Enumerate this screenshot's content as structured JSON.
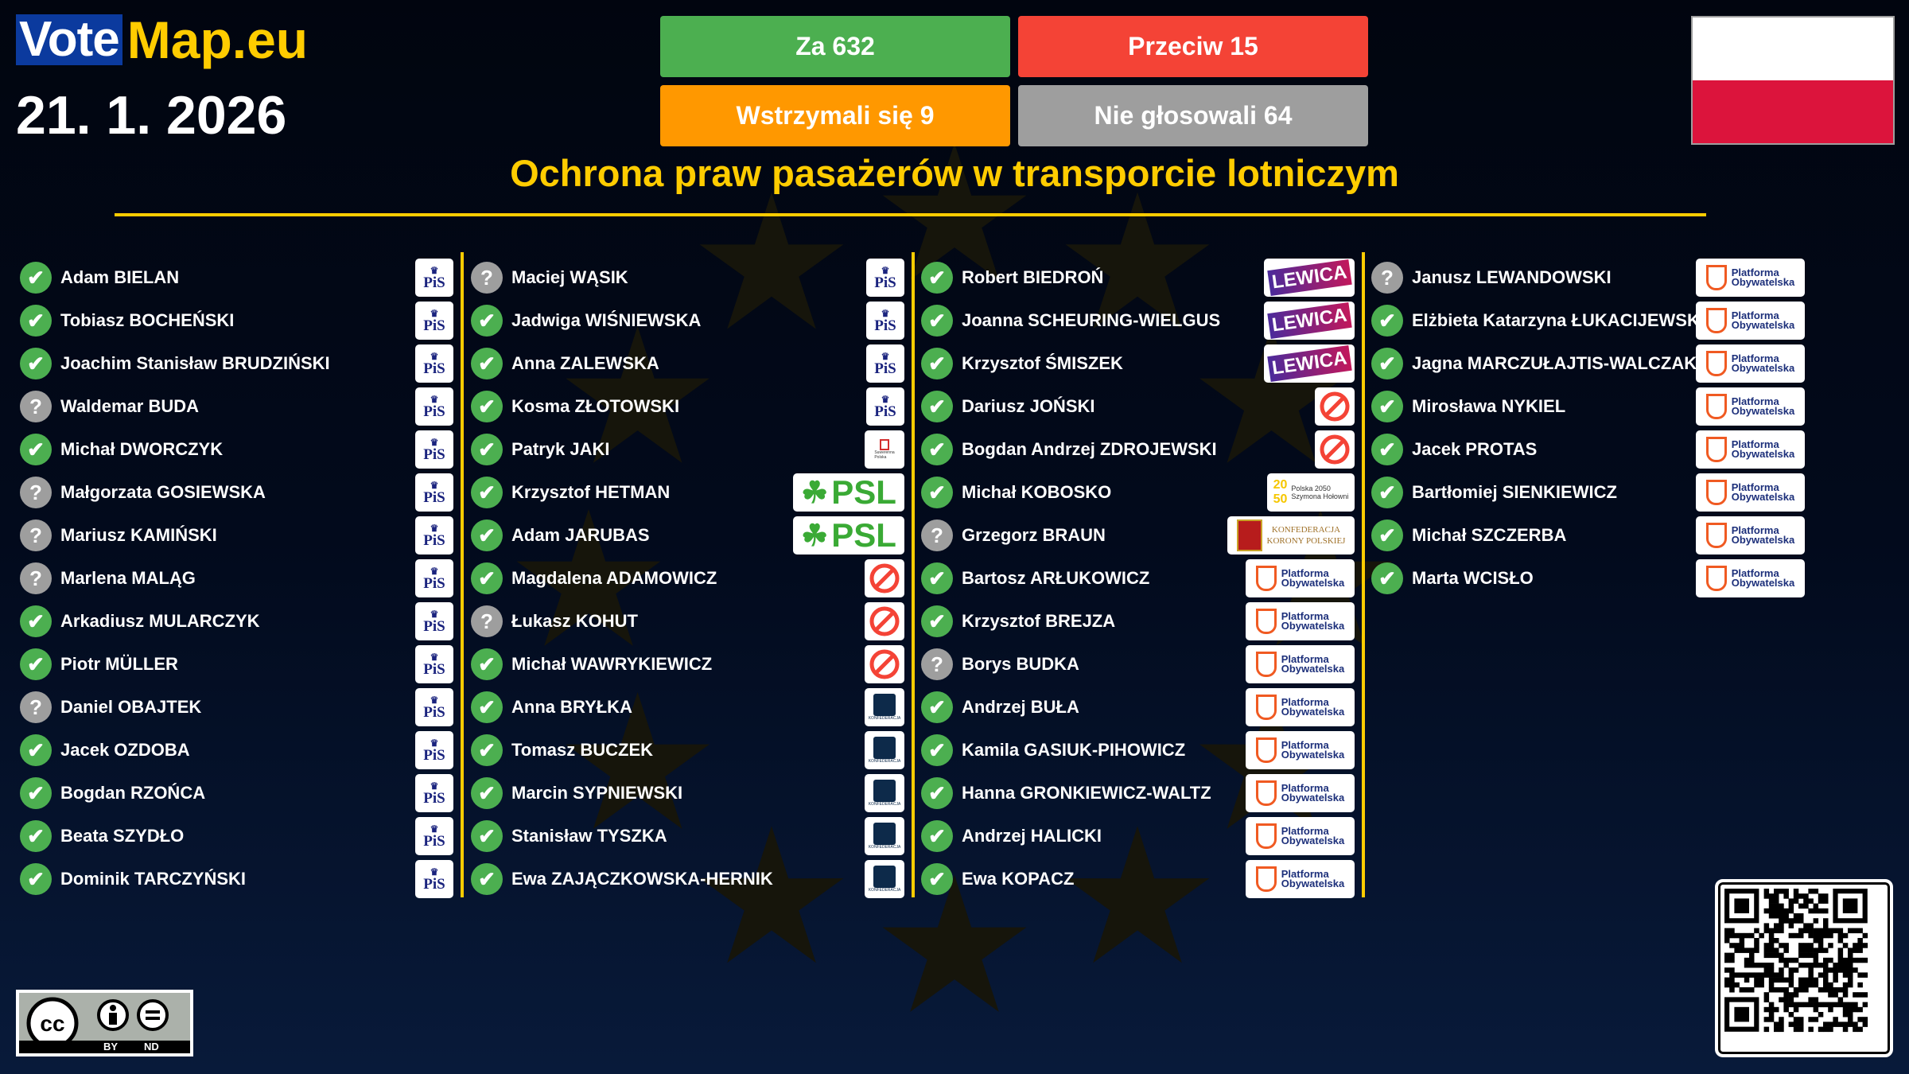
{
  "brand": {
    "vote": "Vote",
    "map": "Map.eu"
  },
  "date": "21. 1. 2026",
  "tally": {
    "for": {
      "label": "Za 632",
      "color": "#4caf50"
    },
    "against": {
      "label": "Przeciw 15",
      "color": "#f44336"
    },
    "abstain": {
      "label": "Wstrzymali się 9",
      "color": "#ff9800"
    },
    "absent": {
      "label": "Nie głosowali 64",
      "color": "#9e9e9e"
    }
  },
  "country_flag": "poland-flag",
  "title": "Ochrona praw pasażerów w transporcie lotniczym",
  "columns": [
    [
      {
        "name": "Adam BIELAN",
        "vote": "for",
        "party": "PiS"
      },
      {
        "name": "Tobiasz BOCHEŃSKI",
        "vote": "for",
        "party": "PiS"
      },
      {
        "name": "Joachim Stanisław BRUDZIŃSKI",
        "vote": "for",
        "party": "PiS"
      },
      {
        "name": "Waldemar BUDA",
        "vote": "unknown",
        "party": "PiS"
      },
      {
        "name": "Michał DWORCZYK",
        "vote": "for",
        "party": "PiS"
      },
      {
        "name": "Małgorzata GOSIEWSKA",
        "vote": "unknown",
        "party": "PiS"
      },
      {
        "name": "Mariusz KAMIŃSKI",
        "vote": "unknown",
        "party": "PiS"
      },
      {
        "name": "Marlena MALĄG",
        "vote": "unknown",
        "party": "PiS"
      },
      {
        "name": "Arkadiusz MULARCZYK",
        "vote": "for",
        "party": "PiS"
      },
      {
        "name": "Piotr MÜLLER",
        "vote": "for",
        "party": "PiS"
      },
      {
        "name": "Daniel OBAJTEK",
        "vote": "unknown",
        "party": "PiS"
      },
      {
        "name": "Jacek OZDOBA",
        "vote": "for",
        "party": "PiS"
      },
      {
        "name": "Bogdan RZOŃCA",
        "vote": "for",
        "party": "PiS"
      },
      {
        "name": "Beata SZYDŁO",
        "vote": "for",
        "party": "PiS"
      },
      {
        "name": "Dominik TARCZYŃSKI",
        "vote": "for",
        "party": "PiS"
      }
    ],
    [
      {
        "name": "Maciej WĄSIK",
        "vote": "unknown",
        "party": "PiS"
      },
      {
        "name": "Jadwiga WIŚNIEWSKA",
        "vote": "for",
        "party": "PiS"
      },
      {
        "name": "Anna ZALEWSKA",
        "vote": "for",
        "party": "PiS"
      },
      {
        "name": "Kosma ZŁOTOWSKI",
        "vote": "for",
        "party": "PiS"
      },
      {
        "name": "Patryk JAKI",
        "vote": "for",
        "party": "Suwerenna Polska"
      },
      {
        "name": "Krzysztof HETMAN",
        "vote": "for",
        "party": "PSL"
      },
      {
        "name": "Adam JARUBAS",
        "vote": "for",
        "party": "PSL"
      },
      {
        "name": "Magdalena ADAMOWICZ",
        "vote": "for",
        "party": "none"
      },
      {
        "name": "Łukasz KOHUT",
        "vote": "unknown",
        "party": "none"
      },
      {
        "name": "Michał WAWRYKIEWICZ",
        "vote": "for",
        "party": "none"
      },
      {
        "name": "Anna BRYŁKA",
        "vote": "for",
        "party": "Konfederacja"
      },
      {
        "name": "Tomasz BUCZEK",
        "vote": "for",
        "party": "Konfederacja"
      },
      {
        "name": "Marcin SYPNIEWSKI",
        "vote": "for",
        "party": "Konfederacja"
      },
      {
        "name": "Stanisław TYSZKA",
        "vote": "for",
        "party": "Konfederacja"
      },
      {
        "name": "Ewa ZAJĄCZKOWSKA-HERNIK",
        "vote": "for",
        "party": "Konfederacja"
      }
    ],
    [
      {
        "name": "Robert BIEDROŃ",
        "vote": "for",
        "party": "Lewica"
      },
      {
        "name": "Joanna SCHEURING-WIELGUS",
        "vote": "for",
        "party": "Lewica"
      },
      {
        "name": "Krzysztof ŚMISZEK",
        "vote": "for",
        "party": "Lewica"
      },
      {
        "name": "Dariusz JOŃSKI",
        "vote": "for",
        "party": "none"
      },
      {
        "name": "Bogdan Andrzej ZDROJEWSKI",
        "vote": "for",
        "party": "none"
      },
      {
        "name": "Michał KOBOSKO",
        "vote": "for",
        "party": "Polska 2050"
      },
      {
        "name": "Grzegorz BRAUN",
        "vote": "unknown",
        "party": "Konfederacja Korony Polskiej"
      },
      {
        "name": "Bartosz ARŁUKOWICZ",
        "vote": "for",
        "party": "Platforma Obywatelska"
      },
      {
        "name": "Krzysztof BREJZA",
        "vote": "for",
        "party": "Platforma Obywatelska"
      },
      {
        "name": "Borys BUDKA",
        "vote": "unknown",
        "party": "Platforma Obywatelska"
      },
      {
        "name": "Andrzej BUŁA",
        "vote": "for",
        "party": "Platforma Obywatelska"
      },
      {
        "name": "Kamila GASIUK-PIHOWICZ",
        "vote": "for",
        "party": "Platforma Obywatelska"
      },
      {
        "name": "Hanna GRONKIEWICZ-WALTZ",
        "vote": "for",
        "party": "Platforma Obywatelska"
      },
      {
        "name": "Andrzej HALICKI",
        "vote": "for",
        "party": "Platforma Obywatelska"
      },
      {
        "name": "Ewa KOPACZ",
        "vote": "for",
        "party": "Platforma Obywatelska"
      }
    ],
    [
      {
        "name": "Janusz LEWANDOWSKI",
        "vote": "unknown",
        "party": "Platforma Obywatelska"
      },
      {
        "name": "Elżbieta Katarzyna ŁUKACIJEWSKA",
        "vote": "for",
        "party": "Platforma Obywatelska"
      },
      {
        "name": "Jagna MARCZUŁAJTIS-WALCZAK",
        "vote": "for",
        "party": "Platforma Obywatelska"
      },
      {
        "name": "Mirosława NYKIEL",
        "vote": "for",
        "party": "Platforma Obywatelska"
      },
      {
        "name": "Jacek PROTAS",
        "vote": "for",
        "party": "Platforma Obywatelska"
      },
      {
        "name": "Bartłomiej SIENKIEWICZ",
        "vote": "for",
        "party": "Platforma Obywatelska"
      },
      {
        "name": "Michał SZCZERBA",
        "vote": "for",
        "party": "Platforma Obywatelska"
      },
      {
        "name": "Marta WCISŁO",
        "vote": "for",
        "party": "Platforma Obywatelska"
      }
    ]
  ],
  "vote_icons": {
    "for": "check-icon",
    "unknown": "question-icon"
  },
  "license": {
    "labels": [
      "BY",
      "ND"
    ],
    "icon": "cc-by-nd-badge"
  },
  "qr": "qr-code",
  "colors": {
    "accent": "#ffcc00",
    "brand_blue": "#0b3a9e",
    "flag_red": "#dc143c"
  }
}
